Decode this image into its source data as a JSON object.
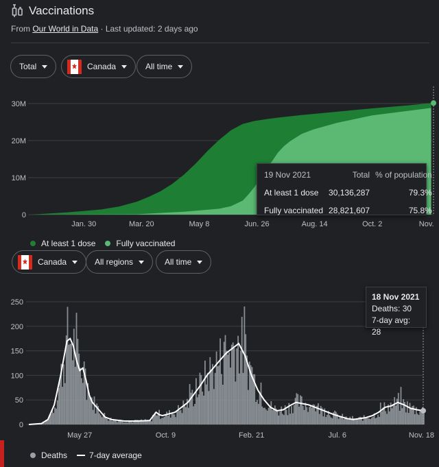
{
  "header": {
    "title": "Vaccinations",
    "source_prefix": "From ",
    "source_link": "Our World in Data",
    "updated": " · Last updated: 2 days ago"
  },
  "vaccine_filters": {
    "metric": "Total",
    "country": "Canada",
    "range": "All time"
  },
  "vaccine_tooltip": {
    "date": "19 Nov 2021",
    "col_total": "Total",
    "col_pct": "% of population",
    "rows": [
      {
        "label": "At least 1 dose",
        "total": "30,136,287",
        "pct": "79.3%"
      },
      {
        "label": "Fully vaccinated",
        "total": "28,821,607",
        "pct": "75.8%"
      }
    ]
  },
  "vaccine_legend": {
    "first": "At least 1 dose",
    "second": "Fully vaccinated"
  },
  "deaths_filters": {
    "country": "Canada",
    "regions": "All regions",
    "range": "All time"
  },
  "deaths_tooltip": {
    "date": "18 Nov 2021",
    "deaths": "Deaths: 30",
    "avg": "7-day avg: 28"
  },
  "deaths_legend": {
    "deaths": "Deaths",
    "avg": "7-day average"
  },
  "colors": {
    "dose1": "#1e7e34",
    "full": "#5bb974",
    "deaths_bar": "#9aa0a6",
    "avg_line": "#ffffff"
  },
  "chart_data": [
    {
      "type": "area",
      "ylim": [
        0,
        30000000
      ],
      "y_ticks": [
        "0",
        "10M",
        "20M",
        "30M"
      ],
      "x_ticks": [
        "Jan. 30",
        "Mar. 20",
        "May 8",
        "Jun. 26",
        "Aug. 14",
        "Oct. 2",
        "Nov."
      ],
      "x_tick_pos": [
        15,
        64,
        113,
        162,
        211,
        260,
        306
      ],
      "series": [
        {
          "name": "At least 1 dose",
          "x": [
            -30,
            0,
            15,
            30,
            45,
            60,
            70,
            80,
            90,
            100,
            110,
            120,
            130,
            140,
            150,
            160,
            170,
            180,
            200,
            230,
            260,
            290,
            310
          ],
          "values": [
            0,
            600000,
            1000000,
            1400000,
            2200000,
            3500000,
            4800000,
            6300000,
            8300000,
            10800000,
            13800000,
            17200000,
            20200000,
            22800000,
            24500000,
            25300000,
            25800000,
            26200000,
            26900000,
            27800000,
            28700000,
            29500000,
            30136287
          ]
        },
        {
          "name": "Fully vaccinated",
          "x": [
            -30,
            60,
            100,
            130,
            140,
            150,
            155,
            160,
            165,
            170,
            175,
            180,
            185,
            190,
            200,
            210,
            230,
            260,
            290,
            310
          ],
          "values": [
            0,
            100000,
            800000,
            1600000,
            2300000,
            3800000,
            5500000,
            7500000,
            9800000,
            12500000,
            14500000,
            16800000,
            18500000,
            19800000,
            21800000,
            23000000,
            24800000,
            26800000,
            28000000,
            28821607
          ]
        }
      ]
    },
    {
      "type": "bar",
      "ylim": [
        0,
        250
      ],
      "y_ticks": [
        "0",
        "50",
        "100",
        "150",
        "200",
        "250"
      ],
      "x_ticks": [
        "May 27",
        "Oct. 9",
        "Feb. 21",
        "Jul. 6",
        "Nov. 18"
      ],
      "x_tick_pos": [
        80,
        215,
        350,
        485,
        620
      ],
      "avg_points": {
        "x": [
          0,
          20,
          30,
          40,
          50,
          60,
          65,
          70,
          75,
          80,
          85,
          90,
          95,
          100,
          110,
          120,
          130,
          150,
          170,
          190,
          200,
          205,
          210,
          230,
          250,
          270,
          280,
          290,
          300,
          310,
          320,
          330,
          340,
          350,
          360,
          370,
          380,
          390,
          400,
          410,
          420,
          440,
          460,
          480,
          500,
          510,
          520,
          530,
          540,
          550,
          560,
          570,
          580,
          590,
          600,
          610,
          620
        ],
        "y": [
          0,
          2,
          10,
          40,
          100,
          170,
          175,
          160,
          130,
          110,
          115,
          90,
          60,
          45,
          30,
          15,
          10,
          7,
          7,
          8,
          25,
          20,
          18,
          25,
          45,
          80,
          100,
          115,
          130,
          145,
          155,
          165,
          140,
          100,
          70,
          50,
          35,
          28,
          30,
          38,
          45,
          40,
          30,
          20,
          12,
          10,
          12,
          14,
          18,
          25,
          35,
          38,
          45,
          40,
          33,
          30,
          28
        ]
      }
    }
  ]
}
